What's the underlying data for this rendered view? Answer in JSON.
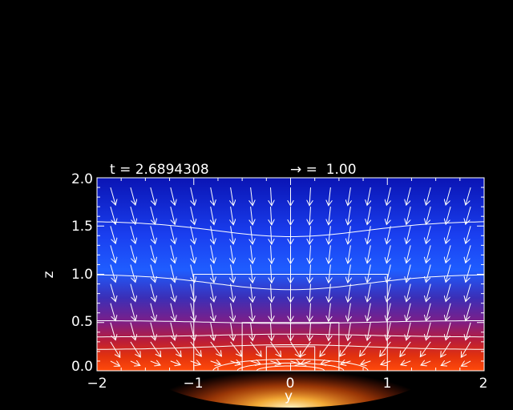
{
  "header": {
    "time_label": "t = 2.6894308",
    "arrow_scale_label": "→ =  1.00"
  },
  "chart_data": {
    "type": "heatmap",
    "xlabel": "y",
    "ylabel": "z",
    "xlim": [
      -2,
      2
    ],
    "ylim": [
      0,
      2
    ],
    "x_ticks": [
      "−2",
      "−1",
      "0",
      "1",
      "2"
    ],
    "y_ticks": [
      "0.0",
      "0.5",
      "1.0",
      "1.5",
      "2.0"
    ],
    "colormap": [
      "#0a14c8",
      "#1a3ff0",
      "#1f5dff",
      "#3a2fb8",
      "#7a1f8a",
      "#b81c3c",
      "#e0300f",
      "#ff5a0a",
      "#ffa52a",
      "#ffe8a0"
    ],
    "overlays": [
      "contour-lines",
      "velocity-arrows",
      "box-outlines"
    ],
    "boxes": [
      {
        "y": [
          -1,
          1
        ],
        "z": [
          0,
          1
        ]
      },
      {
        "y": [
          -0.5,
          0.5
        ],
        "z": [
          0,
          0.5
        ]
      },
      {
        "y": [
          -0.25,
          0.25
        ],
        "z": [
          0,
          0.25
        ]
      }
    ]
  }
}
